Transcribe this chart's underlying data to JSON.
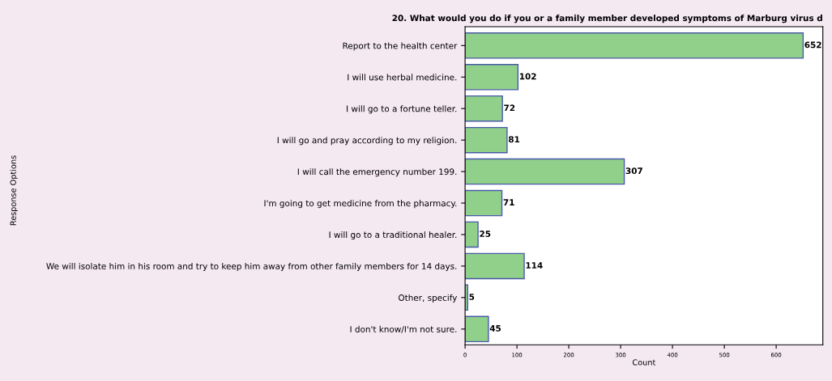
{
  "chart_data": {
    "type": "bar",
    "orientation": "horizontal",
    "title": "20. What would you do if you or a family member developed symptoms of Marburg virus d",
    "xlabel": "Count",
    "ylabel": "Response Options",
    "categories": [
      "Report to the health center",
      "I will use herbal medicine.",
      "I will go to a fortune teller.",
      "I will go and pray according to my religion.",
      "I will call the emergency number 199.",
      "I'm going to get medicine from the pharmacy.",
      "I will go to a traditional healer.",
      "We will isolate him in his room and try to keep him away from other family members for 14 days.",
      "Other, specify",
      "I don't know/I'm not sure."
    ],
    "values": [
      652,
      102,
      72,
      81,
      307,
      71,
      25,
      114,
      5,
      45
    ],
    "color": "#90d08a",
    "data_labels": true,
    "xlim": [
      0,
      690
    ],
    "xticks": [
      0,
      100,
      200,
      300,
      400,
      500,
      600
    ],
    "grid": false,
    "legend": false
  }
}
